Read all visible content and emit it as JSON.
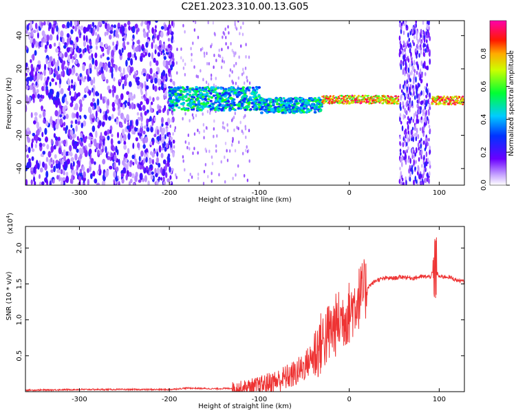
{
  "title": "C2E1.2023.310.00.13.G05",
  "chart_data": [
    {
      "type": "heatmap",
      "xlabel": "Height of straight line (km)",
      "ylabel": "Frequency (Hz)",
      "xlim": [
        -360,
        128
      ],
      "ylim": [
        -50,
        49
      ],
      "x_ticks": [
        -300,
        -200,
        -100,
        0,
        100
      ],
      "y_ticks": [
        -40,
        -20,
        0,
        20,
        40
      ],
      "colorbar": {
        "label": "Normalized spectral amplitude",
        "range": [
          0,
          1
        ],
        "ticks": [
          0.0,
          0.2,
          0.4,
          0.6,
          0.8
        ],
        "colormap": "rainbow (violet → blue → cyan → green → yellow → red → magenta)"
      },
      "features": [
        {
          "x_range": [
            -360,
            -200
          ],
          "freq_range": [
            -50,
            49
          ],
          "amplitude": "low (0.1-0.3), broadband noise"
        },
        {
          "x_range": [
            -200,
            -30
          ],
          "freq_center": 0,
          "freq_halfwidth": 8,
          "amplitude": "0.3-0.6"
        },
        {
          "x_range": [
            -30,
            55
          ],
          "freq_center": 1.5,
          "freq_halfwidth": 3,
          "amplitude": "0.8-1.0"
        },
        {
          "x_range": [
            56,
            90
          ],
          "freq_range": [
            -50,
            49
          ],
          "amplitude": "low, broadband"
        },
        {
          "x_range": [
            92,
            128
          ],
          "freq_center": 1,
          "freq_halfwidth": 3,
          "amplitude": "0.8-1.0"
        }
      ]
    },
    {
      "type": "line",
      "xlabel": "Height of straight line (km)",
      "ylabel": "SNR (10 * v/v)",
      "y_scale_label": "(x10",
      "y_scale_exp": "4",
      "xlim": [
        -360,
        128
      ],
      "ylim": [
        0,
        2.3
      ],
      "x_ticks": [
        -300,
        -200,
        -100,
        0,
        100
      ],
      "y_ticks": [
        0.5,
        1.0,
        1.5,
        2.0
      ],
      "series": [
        {
          "color": "#ee3333",
          "x": [
            -360,
            -300,
            -250,
            -200,
            -180,
            -150,
            -120,
            -100,
            -90,
            -80,
            -70,
            -60,
            -50,
            -40,
            -30,
            -20,
            -10,
            0,
            10,
            20,
            30,
            40,
            50,
            60,
            70,
            80,
            90,
            95,
            100,
            110,
            120,
            128
          ],
          "y": [
            0.02,
            0.03,
            0.03,
            0.03,
            0.05,
            0.04,
            0.05,
            0.08,
            0.12,
            0.15,
            0.2,
            0.25,
            0.35,
            0.5,
            0.7,
            0.85,
            1.0,
            1.1,
            1.3,
            1.45,
            1.55,
            1.58,
            1.58,
            1.6,
            1.58,
            1.6,
            1.6,
            1.7,
            1.6,
            1.6,
            1.55,
            1.53
          ]
        }
      ]
    }
  ]
}
